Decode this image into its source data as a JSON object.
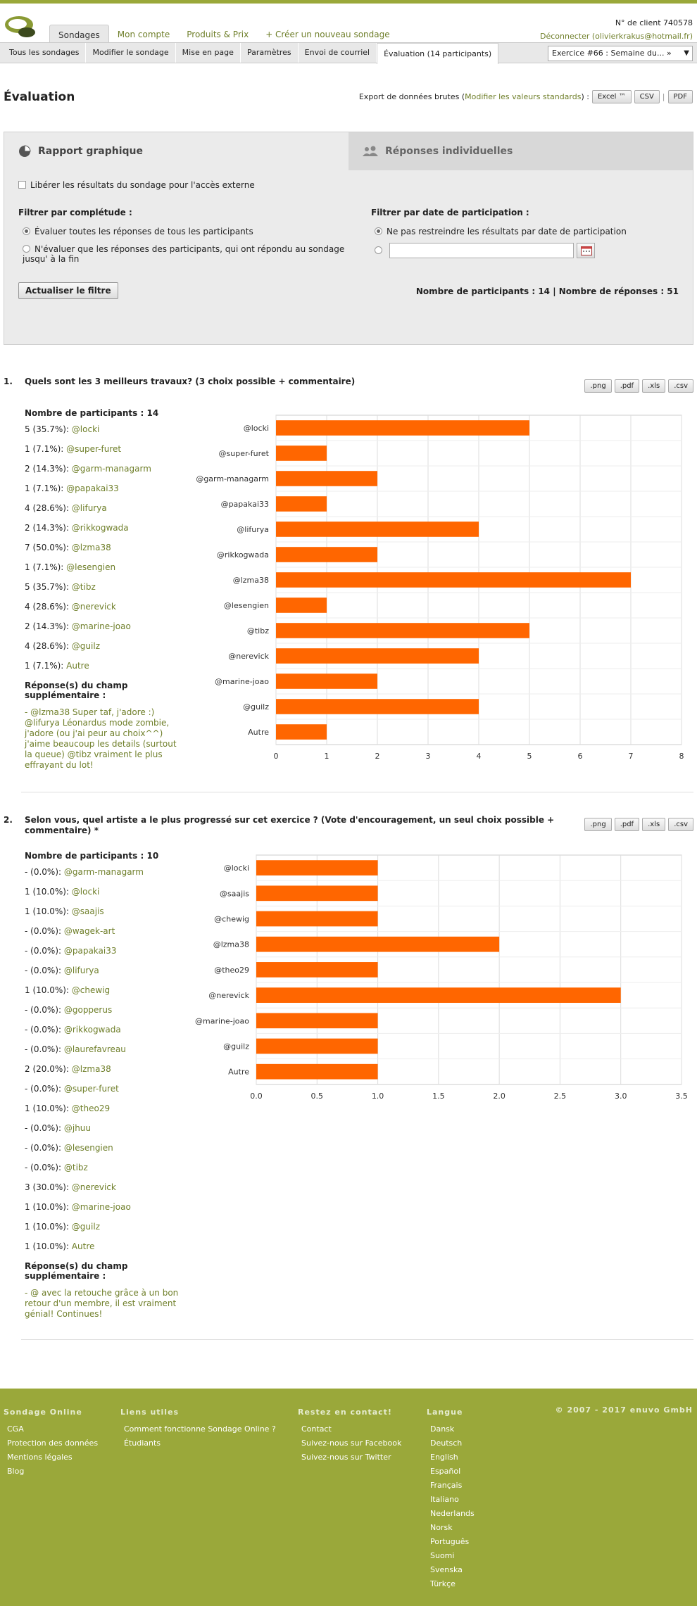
{
  "header": {
    "tabs": [
      "Sondages",
      "Mon compte",
      "Produits & Prix",
      "+ Créer un nouveau sondage"
    ],
    "client_no": "N° de client 740578",
    "logout": "Déconnecter (olivierkrakus@hotmail.fr)"
  },
  "subnav": {
    "items": [
      "Tous les sondages",
      "Modifier le sondage",
      "Mise en page",
      "Paramètres",
      "Envoi de courriel",
      "Évaluation (14 participants)"
    ],
    "select_value": "Exercice #66 : Semaine du... »"
  },
  "page": {
    "title": "Évaluation",
    "export_label": "Export de données brutes (",
    "export_link": "Modifier les valeurs standards",
    "export_label_end": ") :",
    "excel": "Excel ™",
    "csv": "CSV",
    "sep": "|",
    "pdf": "PDF"
  },
  "panel": {
    "tab_graph": "Rapport graphique",
    "tab_indiv": "Réponses individuelles",
    "external": "Libérer les résultats du sondage pour l'accès externe",
    "filter_comp_title": "Filtrer par complétude :",
    "filter_comp_opt1": "Évaluer toutes les réponses de tous les participants",
    "filter_comp_opt2": "N'évaluer que les réponses des participants, qui ont répondu au sondage jusqu' à la fin",
    "filter_date_title": "Filtrer par date de participation :",
    "filter_date_opt1": "Ne pas restreindre les résultats par date de participation",
    "update_btn": "Actualiser le filtre",
    "counts": "Nombre de participants : 14 | Nombre de réponses : 51"
  },
  "export_buttons": [
    ".png",
    ".pdf",
    ".xls",
    ".csv"
  ],
  "questions": [
    {
      "num": "1.",
      "text": "Quels sont les 3 meilleurs travaux? (3 choix possible + commentaire)",
      "participants": "Nombre de participants : 14",
      "rows": [
        {
          "count": "5 (35.7%): ",
          "name": "@locki"
        },
        {
          "count": "1 (7.1%): ",
          "name": "@super-furet"
        },
        {
          "count": "2 (14.3%): ",
          "name": "@garm-managarm"
        },
        {
          "count": "1 (7.1%): ",
          "name": "@papakai33"
        },
        {
          "count": "4 (28.6%): ",
          "name": "@lifurya"
        },
        {
          "count": "2 (14.3%): ",
          "name": "@rikkogwada"
        },
        {
          "count": "7 (50.0%): ",
          "name": "@lzma38"
        },
        {
          "count": "1 (7.1%): ",
          "name": "@lesengien"
        },
        {
          "count": "5 (35.7%): ",
          "name": "@tibz"
        },
        {
          "count": "4 (28.6%): ",
          "name": "@nerevick"
        },
        {
          "count": "2 (14.3%): ",
          "name": "@marine-joao"
        },
        {
          "count": "4 (28.6%): ",
          "name": "@guilz"
        },
        {
          "count": "1 (7.1%): ",
          "name": "Autre"
        }
      ],
      "extra_title": "Réponse(s) du champ supplémentaire :",
      "extra_text": "- @lzma38 Super taf, j'adore :) @lifurya Léonardus mode zombie, j'adore (ou j'ai peur au choix^^) j'aime beaucoup les details (surtout la queue) @tibz vraiment le plus effrayant du lot!"
    },
    {
      "num": "2.",
      "text": "Selon vous, quel artiste a le plus progressé sur cet exercice ? (Vote d'encouragement, un seul choix possible + commentaire) *",
      "participants": "Nombre de participants : 10",
      "rows": [
        {
          "count": "- (0.0%): ",
          "name": "@garm-managarm"
        },
        {
          "count": "1 (10.0%): ",
          "name": "@locki"
        },
        {
          "count": "1 (10.0%): ",
          "name": "@saajis"
        },
        {
          "count": "- (0.0%): ",
          "name": "@wagek-art"
        },
        {
          "count": "- (0.0%): ",
          "name": "@papakai33"
        },
        {
          "count": "- (0.0%): ",
          "name": "@lifurya"
        },
        {
          "count": "1 (10.0%): ",
          "name": "@chewig"
        },
        {
          "count": "- (0.0%): ",
          "name": "@gopperus"
        },
        {
          "count": "- (0.0%): ",
          "name": "@rikkogwada"
        },
        {
          "count": "- (0.0%): ",
          "name": "@laurefavreau"
        },
        {
          "count": "2 (20.0%): ",
          "name": "@lzma38"
        },
        {
          "count": "- (0.0%): ",
          "name": "@super-furet"
        },
        {
          "count": "1 (10.0%): ",
          "name": "@theo29"
        },
        {
          "count": "- (0.0%): ",
          "name": "@jhuu"
        },
        {
          "count": "- (0.0%): ",
          "name": "@lesengien"
        },
        {
          "count": "- (0.0%): ",
          "name": "@tibz"
        },
        {
          "count": "3 (30.0%): ",
          "name": "@nerevick"
        },
        {
          "count": "1 (10.0%): ",
          "name": "@marine-joao"
        },
        {
          "count": "1 (10.0%): ",
          "name": "@guilz"
        },
        {
          "count": "1 (10.0%): ",
          "name": "Autre"
        }
      ],
      "extra_title": "Réponse(s) du champ supplémentaire :",
      "extra_text": "- @ avec la retouche grâce à un bon retour d'un membre, il est vraiment génial! Continues!"
    }
  ],
  "chart_data": [
    {
      "type": "bar",
      "orientation": "horizontal",
      "categories": [
        "@locki",
        "@super-furet",
        "@garm-managarm",
        "@papakai33",
        "@lifurya",
        "@rikkogwada",
        "@lzma38",
        "@lesengien",
        "@tibz",
        "@nerevick",
        "@marine-joao",
        "@guilz",
        "Autre"
      ],
      "values": [
        5,
        1,
        2,
        1,
        4,
        2,
        7,
        1,
        5,
        4,
        2,
        4,
        1
      ],
      "xlim": [
        0,
        8
      ],
      "ticks": [
        "0",
        "1",
        "2",
        "3",
        "4",
        "5",
        "6",
        "7",
        "8"
      ],
      "color": "#ff6600"
    },
    {
      "type": "bar",
      "orientation": "horizontal",
      "categories": [
        "@locki",
        "@saajis",
        "@chewig",
        "@lzma38",
        "@theo29",
        "@nerevick",
        "@marine-joao",
        "@guilz",
        "Autre"
      ],
      "values": [
        1,
        1,
        1,
        2,
        1,
        3,
        1,
        1,
        1
      ],
      "xlim": [
        0,
        3.5
      ],
      "ticks": [
        "0.0",
        "0.5",
        "1.0",
        "1.5",
        "2.0",
        "2.5",
        "3.0",
        "3.5"
      ],
      "color": "#ff6600"
    }
  ],
  "footer": {
    "col1_title": "Sondage Online",
    "col1": [
      "CGA",
      "Protection des données",
      "Mentions légales",
      "Blog"
    ],
    "col2_title": "Liens utiles",
    "col2": [
      "Comment fonctionne Sondage Online ?",
      "Étudiants"
    ],
    "col3_title": "Restez en contact!",
    "col3": [
      "Contact",
      "Suivez-nous sur Facebook",
      "Suivez-nous sur Twitter"
    ],
    "col4_title": "Langue",
    "col4": [
      "Dansk",
      "Deutsch",
      "English",
      "Español",
      "Français",
      "Italiano",
      "Nederlands",
      "Norsk",
      "Português",
      "Suomi",
      "Svenska",
      "Türkçe"
    ],
    "copyright": "© 2007 - 2017 enuvo GmbH"
  }
}
